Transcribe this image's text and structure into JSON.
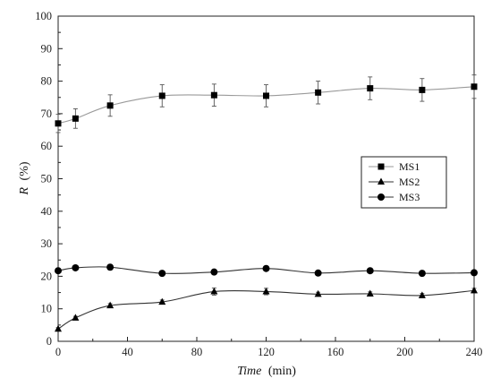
{
  "chart_data": {
    "type": "line",
    "title": "",
    "xlabel": {
      "var": "Time",
      "unit": "(min)"
    },
    "ylabel": {
      "var": "R",
      "unit": "(%)"
    },
    "xlim": [
      0,
      240
    ],
    "ylim": [
      0,
      100
    ],
    "x_ticks": [
      0,
      40,
      80,
      120,
      160,
      200,
      240
    ],
    "y_ticks": [
      0,
      10,
      20,
      30,
      40,
      50,
      60,
      70,
      80,
      90,
      100
    ],
    "x": [
      0,
      10,
      30,
      60,
      90,
      120,
      150,
      180,
      210,
      240
    ],
    "grid": false,
    "legend_position": "middle-right",
    "series": [
      {
        "name": "MS1",
        "marker": "square",
        "line_color": "#9a9a9a",
        "values": [
          67,
          68.5,
          72.5,
          75.5,
          75.7,
          75.5,
          76.5,
          77.8,
          77.3,
          78.3
        ],
        "errors": [
          2.8,
          3.0,
          3.3,
          3.4,
          3.4,
          3.4,
          3.5,
          3.5,
          3.5,
          3.6
        ]
      },
      {
        "name": "MS2",
        "marker": "triangle",
        "line_color": "#333333",
        "values": [
          3.8,
          7.2,
          11,
          12.1,
          15.3,
          15.3,
          14.5,
          14.6,
          14.1,
          15.6
        ],
        "errors": [
          0.4,
          0.5,
          0.6,
          0.6,
          1.1,
          1.0,
          0.6,
          0.6,
          0.6,
          0.7
        ]
      },
      {
        "name": "MS3",
        "marker": "circle",
        "line_color": "#333333",
        "values": [
          21.7,
          22.6,
          22.8,
          20.9,
          21.3,
          22.4,
          21.0,
          21.7,
          20.9,
          21.1
        ],
        "errors": [
          0,
          0,
          0,
          0,
          0,
          0,
          0,
          0,
          0,
          0
        ]
      }
    ]
  }
}
